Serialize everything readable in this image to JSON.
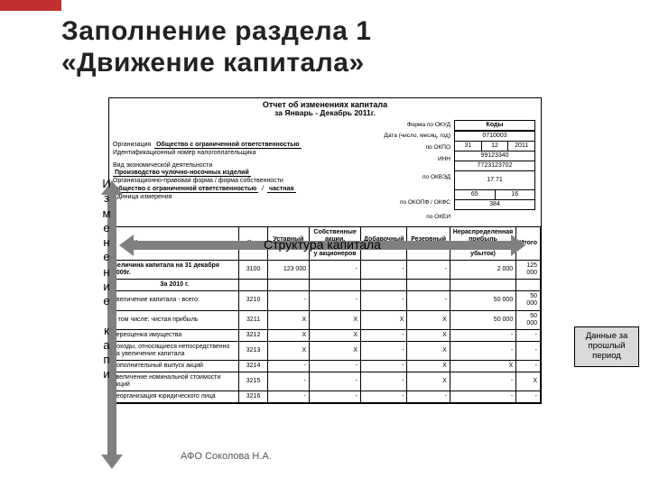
{
  "accent_color": "#c32f2f",
  "title_line1": "Заполнение раздела 1",
  "title_line2": "«Движение капитала»",
  "figure": {
    "title": "Отчет об изменениях капитала",
    "period": "за Январь - Декабрь 2011г.",
    "codes_header": "Коды",
    "okud": "0710003",
    "date": [
      "31",
      "12",
      "2011"
    ],
    "okpo": "99123340",
    "inn": "7723123702",
    "okved": "17.71",
    "okopf": "65",
    "okfs": "16",
    "okei": "384",
    "org_label": "Организация",
    "org_value": "Общество с ограниченной ответственностью",
    "inn_label": "Идентификационный номер налогоплательщика",
    "act_label": "Вид экономической деятельности",
    "act_value": "Производство чулочно-носочных изделий",
    "form_label1": "Организационно-правовая форма / форма собственности",
    "form_value1": "общество с ограниченной ответственностью",
    "form_value2": "частная",
    "unit_label": "Единица измерения",
    "by_okud": "Форма по ОКУД",
    "by_date": "Дата (число, месяц, год)",
    "by_okpo": "по ОКПО",
    "by_inn": "ИНН",
    "by_okved": "по ОКВЭД",
    "by_okopf": "по ОКОПФ / ОКФС",
    "by_okei": "по ОКЕИ"
  },
  "table": {
    "columns": [
      "Наименование показателя",
      "Код",
      "Уставный капитал",
      "Собственные акции, выкупленные у акционеров",
      "Добавочный капитал",
      "Резервный капитал",
      "Нераспределенная прибыль (непокрытый убыток)",
      "Итого"
    ],
    "rows": [
      {
        "name": "Величина капитала на 31 декабря 2009г.",
        "code": "3100",
        "c": [
          "123 000",
          "-",
          "-",
          "-",
          "2 000",
          "125 000"
        ],
        "bold": true
      },
      {
        "name": "За 2010 г.",
        "code": "",
        "c": [
          "",
          "",
          "",
          "",
          "",
          ""
        ],
        "bold": true,
        "section": true
      },
      {
        "name": "Увеличение капитала - всего:",
        "code": "3210",
        "c": [
          "-",
          "-",
          "-",
          "-",
          "50 000",
          "50 000"
        ]
      },
      {
        "name": "в том числе:\nчистая прибыль",
        "code": "3211",
        "c": [
          "X",
          "X",
          "X",
          "X",
          "50 000",
          "50 000"
        ]
      },
      {
        "name": "переоценка имущества",
        "code": "3212",
        "c": [
          "X",
          "X",
          "-",
          "X",
          "-",
          "-"
        ]
      },
      {
        "name": "доходы, относящиеся непосредственно на увеличение капитала",
        "code": "3213",
        "c": [
          "X",
          "X",
          "-",
          "X",
          "-",
          "-"
        ]
      },
      {
        "name": "дополнительный выпуск акций",
        "code": "3214",
        "c": [
          "-",
          "-",
          "-",
          "X",
          "X",
          "-"
        ]
      },
      {
        "name": "увеличение номинальной стоимости акций",
        "code": "3215",
        "c": [
          "-",
          "-",
          "-",
          "X",
          "-",
          "X"
        ]
      },
      {
        "name": "реорганизация юридического лица",
        "code": "3216",
        "c": [
          "-",
          "-",
          "-",
          "-",
          "-",
          "-"
        ]
      }
    ]
  },
  "arrows": {
    "horizontal_label": "Структура капитала",
    "vertical_label": "Изменение капи"
  },
  "side_note": "Данные за прошлый период",
  "footer": "АФО Соколова Н.А."
}
